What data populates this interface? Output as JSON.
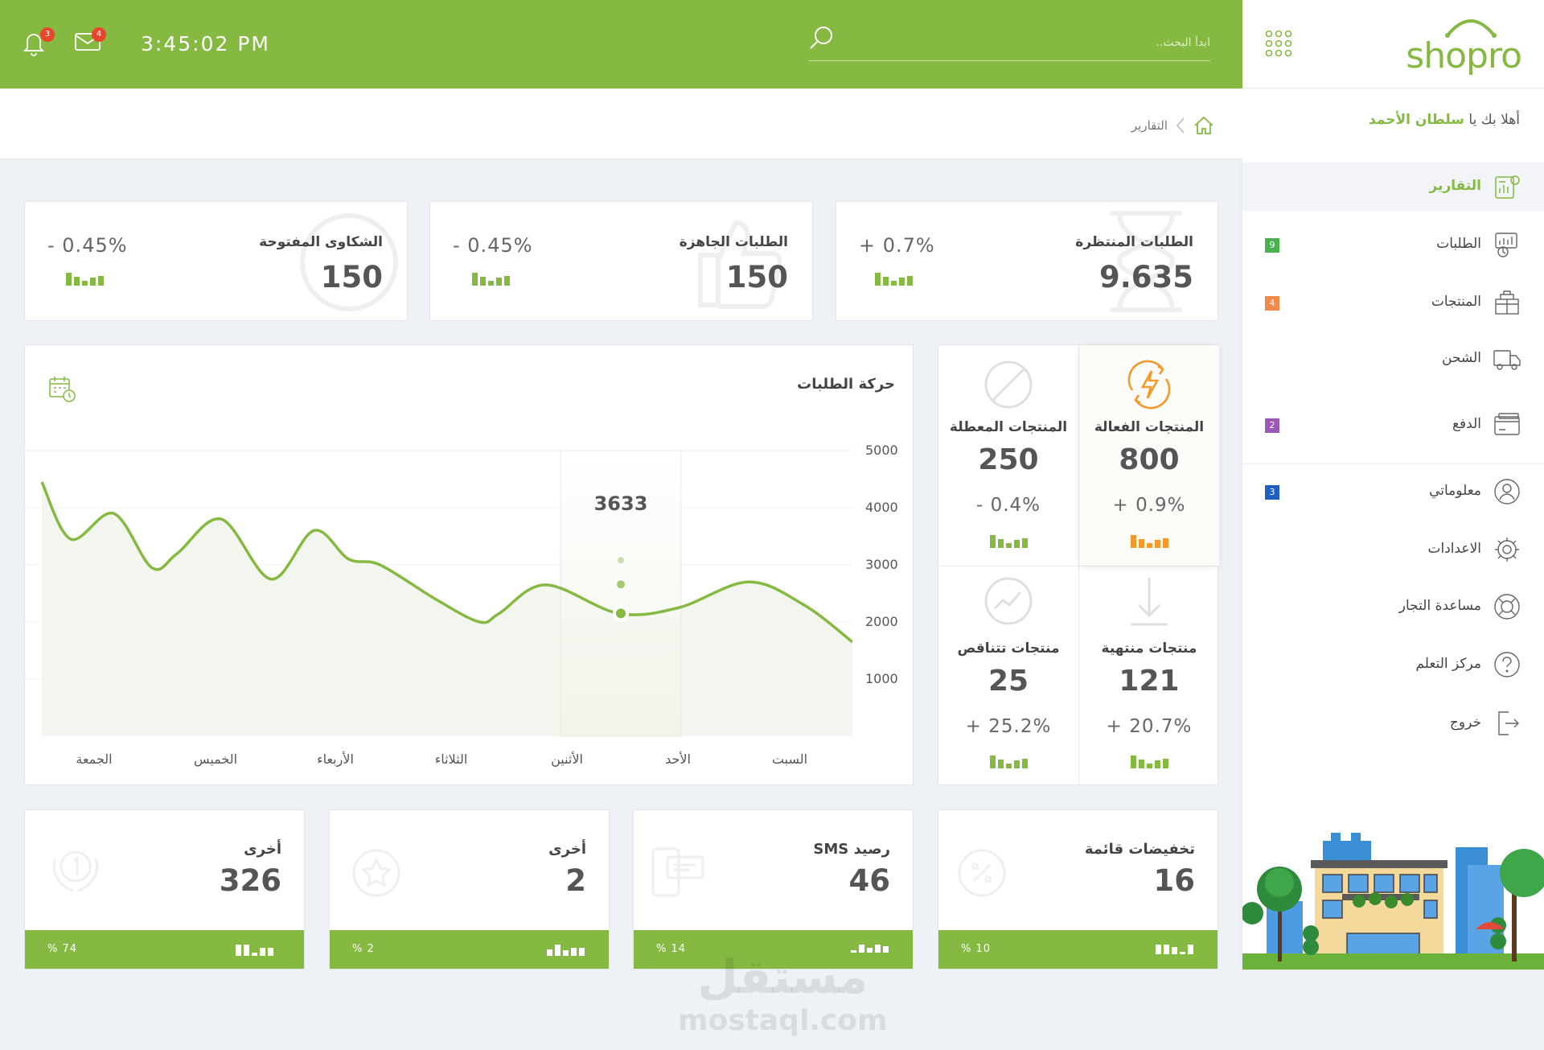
{
  "header": {
    "clock": "3:45:02 PM",
    "notifications_count": "3",
    "messages_count": "4",
    "search_placeholder": "ابدأ البحث.."
  },
  "brand": {
    "logo": "shopro"
  },
  "sidebar": {
    "welcome_prefix": "أهلا بك يا",
    "user_name": "سلطان الأحمد",
    "items": [
      {
        "label": "التقارير",
        "icon": "reports-icon",
        "badge": "",
        "active": true
      },
      {
        "label": "الطلبات",
        "icon": "orders-icon",
        "badge": "9",
        "badge_color": "#4caf50"
      },
      {
        "label": "المنتجات",
        "icon": "products-icon",
        "badge": "4",
        "badge_color": "#f08a4b"
      },
      {
        "label": "الشحن",
        "icon": "truck-icon",
        "badge": ""
      },
      {
        "label": "الدفع",
        "icon": "card-icon",
        "badge": "2",
        "badge_color": "#9b59b6"
      },
      {
        "label": "معلوماتي",
        "icon": "user-icon",
        "badge": "3",
        "badge_color": "#1f5fbf"
      },
      {
        "label": "الاعدادات",
        "icon": "gear-icon",
        "badge": ""
      },
      {
        "label": "مساعدة التجار",
        "icon": "lifebuoy-icon",
        "badge": ""
      },
      {
        "label": "مركز التعلم",
        "icon": "question-icon",
        "badge": ""
      },
      {
        "label": "خروج",
        "icon": "logout-icon",
        "badge": ""
      }
    ]
  },
  "breadcrumb": {
    "current": "التقارير"
  },
  "top_stats": [
    {
      "title": "الطلبات المنتظرة",
      "value": "9.635",
      "change": "+ 0.7%"
    },
    {
      "title": "الطلبات الجاهزة",
      "value": "150",
      "change": "- 0.45%"
    },
    {
      "title": "الشكاوى المفتوحة",
      "value": "150",
      "change": "- 0.45%"
    }
  ],
  "products": {
    "active": {
      "title": "المنتجات الفعالة",
      "value": "800",
      "change": "+ 0.9%"
    },
    "disabled": {
      "title": "المنتجات المعطلة",
      "value": "250",
      "change": "- 0.4%"
    },
    "ended": {
      "title": "منتجات منتهية",
      "value": "121",
      "change": "+ 20.7%"
    },
    "decreasing": {
      "title": "منتجات تتناقص",
      "value": "25",
      "change": "+ 25.2%"
    }
  },
  "bottom_cards": [
    {
      "title": "تخفيضات قائمة",
      "value": "16",
      "percent": "% 10"
    },
    {
      "title": "رصيد SMS",
      "value": "46",
      "percent": "% 14"
    },
    {
      "title": "أخرى",
      "value": "2",
      "percent": "% 2"
    },
    {
      "title": "أخرى",
      "value": "326",
      "percent": "% 74"
    }
  ],
  "chart_data": {
    "type": "line",
    "title": "حركة الطلبات",
    "categories": [
      "السبت",
      "الأحد",
      "الأثنين",
      "الثلاثاء",
      "الأربعاء",
      "الخميس",
      "الجمعة"
    ],
    "y_ticks": [
      "5000",
      "4000",
      "3000",
      "2000",
      "1000"
    ],
    "ylim": [
      0,
      5000
    ],
    "highlight": {
      "category": "الأثنين",
      "value": "3633"
    },
    "series": [
      {
        "color": "#85b942",
        "points": [
          [
            0.0,
            1650
          ],
          [
            0.42,
            2300
          ],
          [
            0.9,
            2700
          ],
          [
            1.5,
            2250
          ],
          [
            2.02,
            2150
          ],
          [
            2.65,
            2650
          ],
          [
            3.05,
            2150
          ],
          [
            3.22,
            2000
          ],
          [
            3.6,
            2400
          ],
          [
            4.08,
            3000
          ],
          [
            4.35,
            3100
          ],
          [
            4.65,
            3600
          ],
          [
            5.02,
            2750
          ],
          [
            5.45,
            3800
          ],
          [
            5.83,
            3200
          ],
          [
            6.05,
            2950
          ],
          [
            6.38,
            3900
          ],
          [
            6.75,
            3450
          ],
          [
            7.0,
            4450
          ]
        ]
      }
    ]
  },
  "watermark": {
    "main": "مستقل",
    "sub": "mostaql.com"
  }
}
